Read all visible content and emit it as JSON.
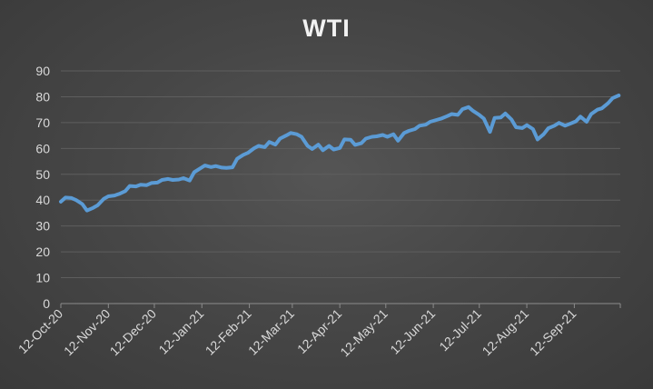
{
  "chart_data": {
    "type": "line",
    "title": "WTI",
    "xlabel": "",
    "ylabel": "",
    "ylim": [
      0,
      90
    ],
    "yticks": [
      0,
      10,
      20,
      30,
      40,
      50,
      60,
      70,
      80,
      90
    ],
    "xlim": [
      "2020-10-12",
      "2021-10-12"
    ],
    "xticks": [
      {
        "date": "2020-10-12",
        "label": "12-Oct-20"
      },
      {
        "date": "2020-11-12",
        "label": "12-Nov-20"
      },
      {
        "date": "2020-12-12",
        "label": "12-Dec-20"
      },
      {
        "date": "2021-01-12",
        "label": "12-Jan-21"
      },
      {
        "date": "2021-02-12",
        "label": "12-Feb-21"
      },
      {
        "date": "2021-03-12",
        "label": "12-Mar-21"
      },
      {
        "date": "2021-04-12",
        "label": "12-Apr-21"
      },
      {
        "date": "2021-05-12",
        "label": "12-May-21"
      },
      {
        "date": "2021-06-12",
        "label": "12-Jun-21"
      },
      {
        "date": "2021-07-12",
        "label": "12-Jul-21"
      },
      {
        "date": "2021-08-12",
        "label": "12-Aug-21"
      },
      {
        "date": "2021-09-12",
        "label": "12-Sep-21"
      },
      {
        "date": "2021-10-12",
        "label": ""
      }
    ],
    "grid": true,
    "legend": "none",
    "line_color": "#5b9bd5",
    "series": [
      {
        "x": [
          "2020-10-12",
          "2020-10-15",
          "2020-10-19",
          "2020-10-22",
          "2020-10-26",
          "2020-10-29",
          "2020-11-02",
          "2020-11-05",
          "2020-11-09",
          "2020-11-12",
          "2020-11-16",
          "2020-11-19",
          "2020-11-23",
          "2020-11-26",
          "2020-11-30",
          "2020-12-03",
          "2020-12-07",
          "2020-12-10",
          "2020-12-14",
          "2020-12-17",
          "2020-12-21",
          "2020-12-24",
          "2020-12-28",
          "2020-12-31",
          "2021-01-04",
          "2021-01-07",
          "2021-01-11",
          "2021-01-14",
          "2021-01-18",
          "2021-01-21",
          "2021-01-25",
          "2021-01-28",
          "2021-02-01",
          "2021-02-04",
          "2021-02-08",
          "2021-02-11",
          "2021-02-15",
          "2021-02-18",
          "2021-02-22",
          "2021-02-25",
          "2021-03-01",
          "2021-03-04",
          "2021-03-08",
          "2021-03-11",
          "2021-03-15",
          "2021-03-18",
          "2021-03-22",
          "2021-03-25",
          "2021-03-29",
          "2021-04-01",
          "2021-04-05",
          "2021-04-08",
          "2021-04-12",
          "2021-04-15",
          "2021-04-19",
          "2021-04-22",
          "2021-04-26",
          "2021-04-29",
          "2021-05-03",
          "2021-05-06",
          "2021-05-10",
          "2021-05-13",
          "2021-05-17",
          "2021-05-20",
          "2021-05-24",
          "2021-05-27",
          "2021-05-31",
          "2021-06-03",
          "2021-06-07",
          "2021-06-10",
          "2021-06-14",
          "2021-06-17",
          "2021-06-21",
          "2021-06-24",
          "2021-06-28",
          "2021-07-01",
          "2021-07-05",
          "2021-07-08",
          "2021-07-12",
          "2021-07-15",
          "2021-07-19",
          "2021-07-22",
          "2021-07-26",
          "2021-07-29",
          "2021-08-02",
          "2021-08-05",
          "2021-08-09",
          "2021-08-12",
          "2021-08-16",
          "2021-08-19",
          "2021-08-23",
          "2021-08-26",
          "2021-08-30",
          "2021-09-02",
          "2021-09-06",
          "2021-09-09",
          "2021-09-13",
          "2021-09-16",
          "2021-09-20",
          "2021-09-23",
          "2021-09-27",
          "2021-09-30",
          "2021-10-04",
          "2021-10-07",
          "2021-10-11"
        ],
        "values": [
          39.4,
          41.0,
          40.8,
          40.0,
          38.5,
          36.0,
          37.0,
          38.0,
          40.5,
          41.5,
          41.8,
          42.4,
          43.5,
          45.5,
          45.3,
          46.0,
          45.8,
          46.6,
          46.8,
          47.8,
          48.2,
          47.8,
          48.0,
          48.5,
          47.6,
          50.8,
          52.3,
          53.4,
          52.8,
          53.2,
          52.6,
          52.5,
          52.7,
          56.0,
          57.5,
          58.3,
          60.0,
          61.0,
          60.5,
          62.5,
          61.5,
          63.8,
          65.0,
          66.0,
          65.5,
          64.5,
          61.0,
          59.8,
          61.5,
          59.3,
          61.0,
          59.6,
          60.2,
          63.5,
          63.4,
          61.4,
          62.0,
          63.8,
          64.5,
          64.7,
          65.2,
          64.5,
          65.5,
          63.0,
          66.0,
          66.8,
          67.5,
          68.8,
          69.2,
          70.3,
          71.0,
          71.5,
          72.5,
          73.3,
          73.0,
          75.2,
          76.0,
          74.5,
          73.0,
          71.5,
          66.4,
          71.8,
          72.0,
          73.5,
          71.2,
          68.2,
          67.9,
          69.0,
          67.5,
          63.5,
          65.5,
          67.8,
          68.8,
          69.9,
          68.8,
          69.5,
          70.5,
          72.3,
          70.3,
          73.3,
          75.0,
          75.5,
          77.5,
          79.5,
          80.5
        ]
      }
    ]
  }
}
